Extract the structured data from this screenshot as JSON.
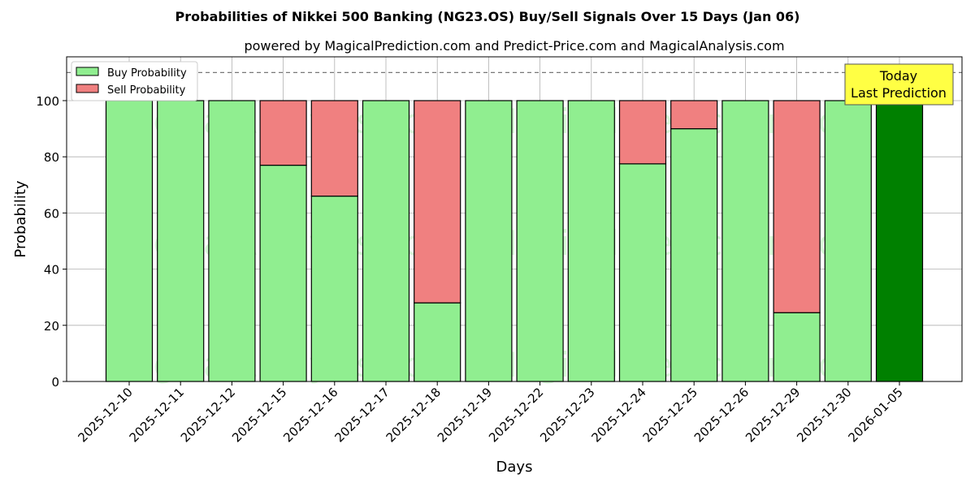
{
  "chart_data": {
    "type": "bar",
    "title": "Probabilities of Nikkei 500 Banking (NG23.OS) Buy/Sell Signals Over 15 Days (Jan 06)",
    "subtitle": "powered by MagicalPrediction.com and Predict-Price.com and MagicalAnalysis.com",
    "xlabel": "Days",
    "ylabel": "Probability",
    "ylim": [
      0,
      115.6
    ],
    "yticks": [
      0,
      20,
      40,
      60,
      80,
      100
    ],
    "categories": [
      "2025-12-10",
      "2025-12-11",
      "2025-12-12",
      "2025-12-15",
      "2025-12-16",
      "2025-12-17",
      "2025-12-18",
      "2025-12-19",
      "2025-12-22",
      "2025-12-23",
      "2025-12-24",
      "2025-12-25",
      "2025-12-26",
      "2025-12-29",
      "2025-12-30",
      "2026-01-05"
    ],
    "series": [
      {
        "name": "Buy Probability",
        "color": "#90ee90",
        "values": [
          100,
          100,
          100,
          77,
          66,
          100,
          28,
          100,
          100,
          100,
          77.5,
          90,
          100,
          24.5,
          100,
          100
        ]
      },
      {
        "name": "Sell Probability",
        "color": "#f08080",
        "values": [
          0,
          0,
          0,
          23,
          34,
          0,
          72,
          0,
          0,
          0,
          22.5,
          10,
          0,
          75.5,
          0,
          0
        ]
      }
    ],
    "highlight_color": "#008000",
    "threshold_line": 110,
    "annotation": "Today\nLast Prediction",
    "legend_placement": "top-left",
    "grid": true,
    "watermarks": [
      "MagicalAnalysis.com",
      "MagicalPrediction.com"
    ]
  }
}
